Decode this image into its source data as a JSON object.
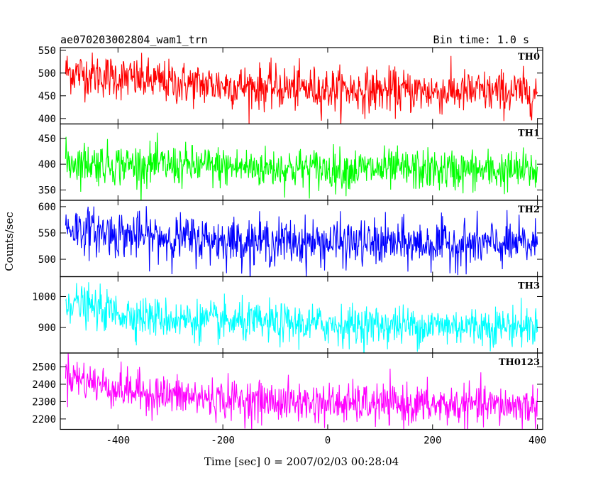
{
  "chart_data": {
    "type": "line",
    "title": "ae070203002804_wam1_trn",
    "subtitle": "Bin time: 1.0 s",
    "xlabel": "Time [sec] 0 = 2007/02/03 00:28:04",
    "ylabel": "Counts/sec",
    "xlim": [
      -510,
      410
    ],
    "x_ticks": [
      -400,
      -200,
      0,
      200,
      400
    ],
    "grid": false,
    "panels": [
      {
        "name": "TH0",
        "color": "#ff0000",
        "ylim": [
          388,
          556
        ],
        "y_ticks": [
          400,
          450,
          500,
          550
        ],
        "x": [
          -500,
          -480,
          -460,
          -440,
          -420,
          -400,
          -380,
          -360,
          -340,
          -320,
          -300,
          -280,
          -260,
          -240,
          -220,
          -200,
          -180,
          -160,
          -140,
          -120,
          -100,
          -80,
          -60,
          -40,
          -20,
          0,
          20,
          40,
          60,
          80,
          100,
          120,
          140,
          160,
          180,
          200,
          220,
          240,
          260,
          280,
          300,
          320,
          340,
          360,
          380,
          400
        ],
        "values": [
          505,
          500,
          498,
          495,
          493,
          490,
          488,
          485,
          483,
          481,
          479,
          477,
          476,
          475,
          474,
          473,
          472,
          471,
          470,
          469,
          468,
          467,
          466,
          466,
          465,
          464,
          463,
          463,
          462,
          462,
          461,
          461,
          460,
          460,
          460,
          459,
          459,
          459,
          458,
          458,
          458,
          458,
          458,
          457,
          457,
          457
        ],
        "noise_sd": 24
      },
      {
        "name": "TH1",
        "color": "#00ff00",
        "ylim": [
          330,
          478
        ],
        "y_ticks": [
          350,
          400,
          450
        ],
        "x": [
          -500,
          -480,
          -460,
          -440,
          -420,
          -400,
          -380,
          -360,
          -340,
          -320,
          -300,
          -280,
          -260,
          -240,
          -220,
          -200,
          -180,
          -160,
          -140,
          -120,
          -100,
          -80,
          -60,
          -40,
          -20,
          0,
          20,
          40,
          60,
          80,
          100,
          120,
          140,
          160,
          180,
          200,
          220,
          240,
          260,
          280,
          300,
          320,
          340,
          360,
          380,
          400
        ],
        "values": [
          405,
          404,
          403,
          402,
          401,
          400,
          399,
          399,
          398,
          398,
          397,
          397,
          396,
          396,
          395,
          395,
          394,
          394,
          393,
          393,
          393,
          392,
          392,
          392,
          391,
          391,
          391,
          390,
          390,
          390,
          390,
          389,
          389,
          389,
          389,
          388,
          388,
          388,
          388,
          388,
          387,
          387,
          387,
          387,
          387,
          387
        ],
        "noise_sd": 20
      },
      {
        "name": "TH2",
        "color": "#0000ff",
        "ylim": [
          467,
          612
        ],
        "y_ticks": [
          500,
          550,
          600
        ],
        "x": [
          -500,
          -480,
          -460,
          -440,
          -420,
          -400,
          -380,
          -360,
          -340,
          -320,
          -300,
          -280,
          -260,
          -240,
          -220,
          -200,
          -180,
          -160,
          -140,
          -120,
          -100,
          -80,
          -60,
          -40,
          -20,
          0,
          20,
          40,
          60,
          80,
          100,
          120,
          140,
          160,
          180,
          200,
          220,
          240,
          260,
          280,
          300,
          320,
          340,
          360,
          380,
          400
        ],
        "values": [
          562,
          558,
          555,
          552,
          550,
          548,
          546,
          544,
          543,
          542,
          541,
          540,
          539,
          538,
          537,
          536,
          535,
          535,
          534,
          534,
          533,
          533,
          532,
          532,
          532,
          531,
          531,
          531,
          530,
          530,
          530,
          530,
          529,
          529,
          529,
          529,
          529,
          528,
          528,
          528,
          528,
          528,
          528,
          528,
          528,
          528
        ],
        "noise_sd": 22
      },
      {
        "name": "TH3",
        "color": "#00ffff",
        "ylim": [
          818,
          1064
        ],
        "y_ticks": [
          900,
          1000
        ],
        "x": [
          -500,
          -480,
          -460,
          -440,
          -420,
          -400,
          -380,
          -360,
          -340,
          -320,
          -300,
          -280,
          -260,
          -240,
          -220,
          -200,
          -180,
          -160,
          -140,
          -120,
          -100,
          -80,
          -60,
          -40,
          -20,
          0,
          20,
          40,
          60,
          80,
          100,
          120,
          140,
          160,
          180,
          200,
          220,
          240,
          260,
          280,
          300,
          320,
          340,
          360,
          380,
          400
        ],
        "values": [
          990,
          978,
          968,
          960,
          953,
          947,
          942,
          938,
          934,
          931,
          928,
          926,
          924,
          922,
          920,
          918,
          917,
          916,
          915,
          914,
          913,
          912,
          911,
          910,
          910,
          909,
          909,
          908,
          908,
          908,
          907,
          907,
          907,
          906,
          906,
          906,
          906,
          906,
          905,
          905,
          905,
          905,
          905,
          905,
          905,
          905
        ],
        "noise_sd": 32
      },
      {
        "name": "TH0123",
        "color": "#ff00ff",
        "ylim": [
          2140,
          2580
        ],
        "y_ticks": [
          2200,
          2300,
          2400,
          2500
        ],
        "x": [
          -500,
          -480,
          -460,
          -440,
          -420,
          -400,
          -380,
          -360,
          -340,
          -320,
          -300,
          -280,
          -260,
          -240,
          -220,
          -200,
          -180,
          -160,
          -140,
          -120,
          -100,
          -80,
          -60,
          -40,
          -20,
          0,
          20,
          40,
          60,
          80,
          100,
          120,
          140,
          160,
          180,
          200,
          220,
          240,
          260,
          280,
          300,
          320,
          340,
          360,
          380,
          400
        ],
        "values": [
          2470,
          2440,
          2420,
          2402,
          2388,
          2375,
          2365,
          2356,
          2348,
          2341,
          2335,
          2330,
          2325,
          2321,
          2317,
          2313,
          2310,
          2307,
          2304,
          2302,
          2299,
          2297,
          2295,
          2293,
          2291,
          2290,
          2288,
          2287,
          2286,
          2285,
          2284,
          2283,
          2282,
          2281,
          2280,
          2279,
          2279,
          2278,
          2278,
          2277,
          2277,
          2276,
          2276,
          2276,
          2275,
          2275
        ],
        "noise_sd": 58
      }
    ]
  }
}
